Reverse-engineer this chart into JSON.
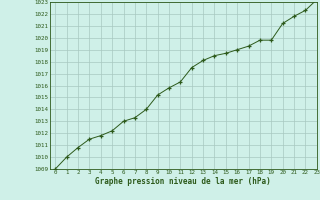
{
  "x": [
    0,
    1,
    2,
    3,
    4,
    5,
    6,
    7,
    8,
    9,
    10,
    11,
    12,
    13,
    14,
    15,
    16,
    17,
    18,
    19,
    20,
    21,
    22,
    23
  ],
  "y": [
    1009.0,
    1010.0,
    1010.8,
    1011.5,
    1011.8,
    1012.2,
    1013.0,
    1013.3,
    1014.0,
    1015.2,
    1015.8,
    1016.3,
    1017.5,
    1018.1,
    1018.5,
    1018.7,
    1019.0,
    1019.3,
    1019.8,
    1019.8,
    1021.2,
    1021.8,
    1022.3,
    1023.2
  ],
  "ylim": [
    1009,
    1023
  ],
  "xlim": [
    -0.5,
    23
  ],
  "yticks": [
    1009,
    1010,
    1011,
    1012,
    1013,
    1014,
    1015,
    1016,
    1017,
    1018,
    1019,
    1020,
    1021,
    1022,
    1023
  ],
  "xticks": [
    0,
    1,
    2,
    3,
    4,
    5,
    6,
    7,
    8,
    9,
    10,
    11,
    12,
    13,
    14,
    15,
    16,
    17,
    18,
    19,
    20,
    21,
    22,
    23
  ],
  "line_color": "#2d5a1b",
  "marker_color": "#2d5a1b",
  "bg_color": "#cff0e8",
  "grid_color": "#a8c8c0",
  "xlabel": "Graphe pression niveau de la mer (hPa)",
  "xlabel_color": "#2d5a1b",
  "tick_color": "#2d5a1b",
  "spine_color": "#2d5a1b",
  "fig_bg": "#cff0e8"
}
